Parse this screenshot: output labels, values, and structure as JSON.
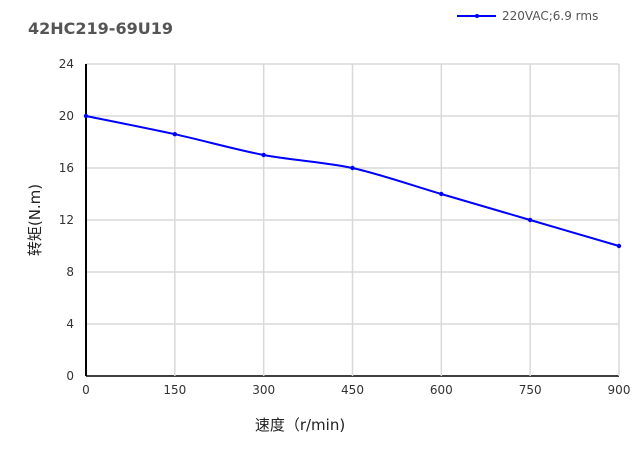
{
  "chart_data": {
    "type": "line",
    "title": "42HC219-69U19",
    "xlabel": "速度（r/min)",
    "ylabel": "转矩(N.m)",
    "x": [
      0,
      150,
      300,
      450,
      600,
      750,
      900
    ],
    "series": [
      {
        "name": "220VAC;6.9 rms",
        "color": "#0000ff",
        "values": [
          20,
          18.6,
          17,
          16,
          14,
          12,
          10
        ]
      }
    ],
    "xlim": [
      0,
      900
    ],
    "ylim": [
      0,
      24
    ],
    "xticks": [
      0,
      150,
      300,
      450,
      600,
      750,
      900
    ],
    "yticks": [
      0,
      4,
      8,
      12,
      16,
      20,
      24
    ],
    "grid": true,
    "legend": "top-right"
  }
}
